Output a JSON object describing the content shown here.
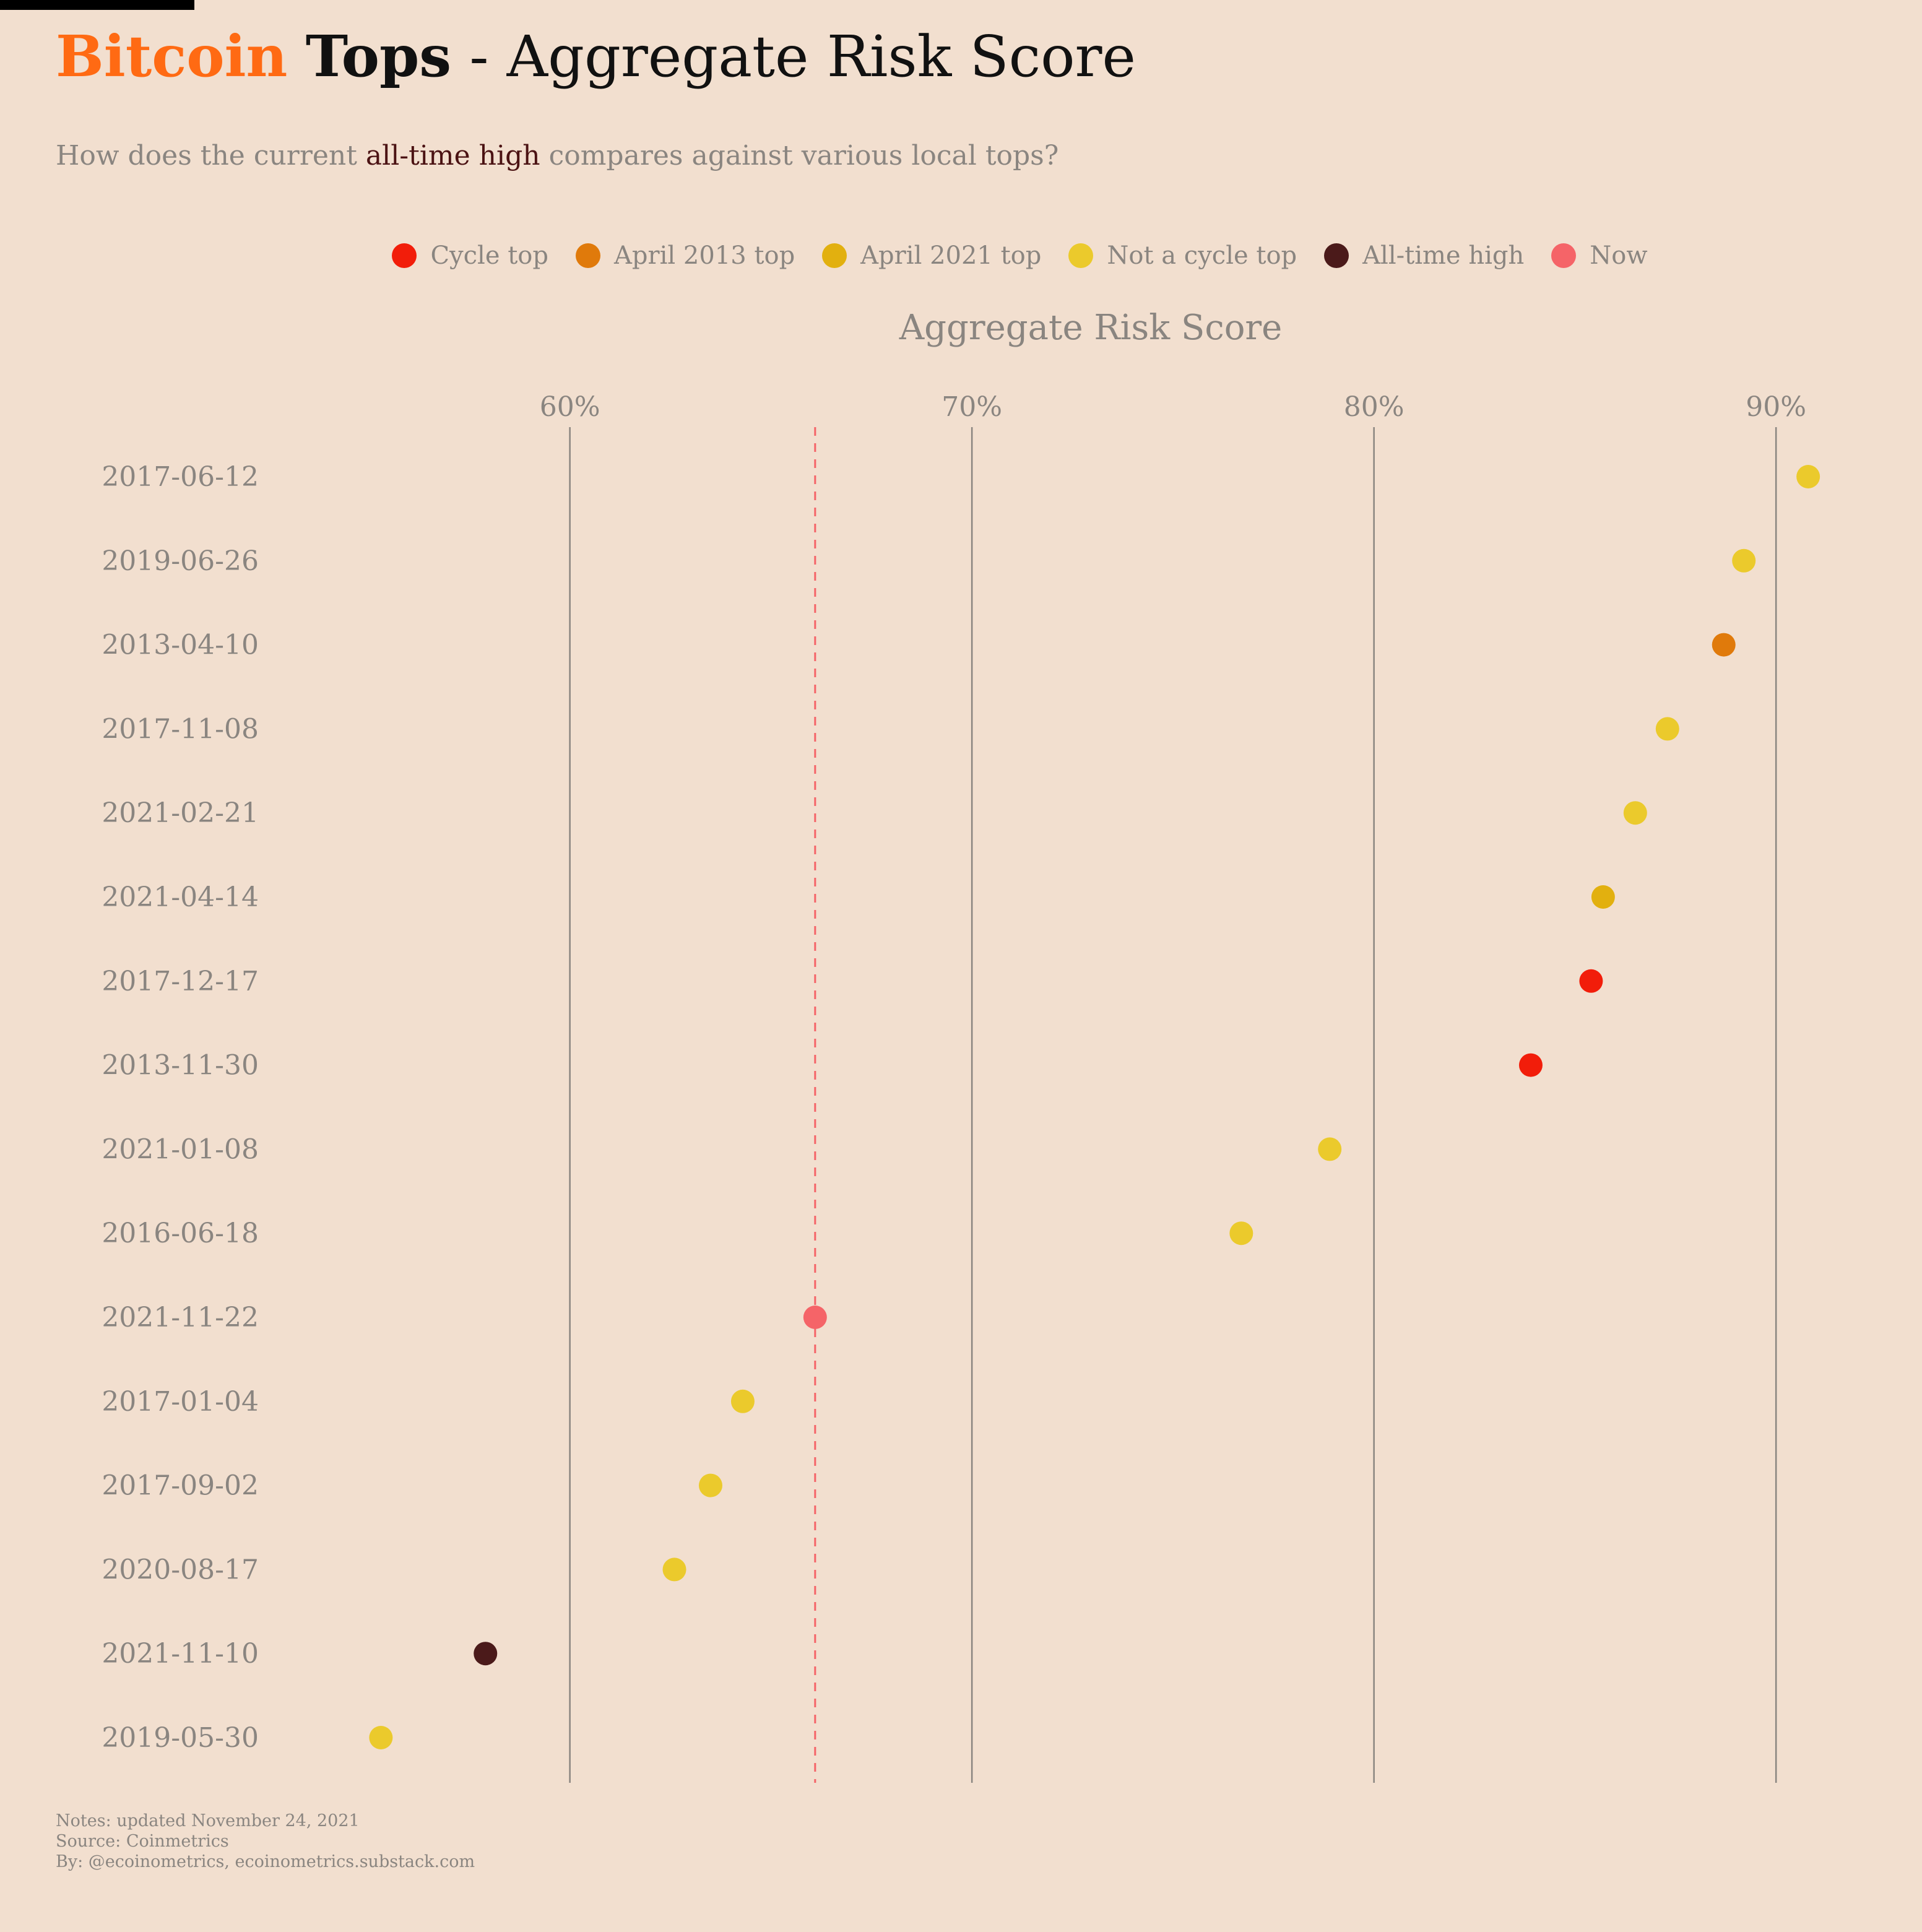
{
  "title": {
    "part1": "Bitcoin",
    "part2": "Tops",
    "part3": " - Aggregate Risk Score"
  },
  "subtitle": {
    "before": "How does the current ",
    "highlight": "all-time high",
    "after": " compares against various local tops?"
  },
  "legend": [
    {
      "label": "Cycle top",
      "color": "#f21d0a"
    },
    {
      "label": "April 2013 top",
      "color": "#e07a0b"
    },
    {
      "label": "April 2021 top",
      "color": "#e2b00f"
    },
    {
      "label": "Not a cycle top",
      "color": "#ebca2c"
    },
    {
      "label": "All-time high",
      "color": "#4b1a1a"
    },
    {
      "label": "Now",
      "color": "#f56468"
    }
  ],
  "notes": {
    "line1": "Notes: updated November 24, 2021",
    "line2": "Source: Coinmetrics",
    "line3": "By: @ecoinometrics, ecoinometrics.substack.com"
  },
  "chart_data": {
    "type": "scatter",
    "xlabel": "Aggregate Risk Score",
    "xlim": [
      52.6,
      93.4
    ],
    "x_ticks": [
      60,
      70,
      80,
      90
    ],
    "x_tick_labels": [
      "60%",
      "70%",
      "80%",
      "90%"
    ],
    "grid": true,
    "reference_line": {
      "x": 66.1,
      "color": "#f56468",
      "style": "dashed"
    },
    "points": [
      {
        "date": "2017-06-12",
        "value": 90.8,
        "category": "Not a cycle top"
      },
      {
        "date": "2019-06-26",
        "value": 89.2,
        "category": "Not a cycle top"
      },
      {
        "date": "2013-04-10",
        "value": 88.7,
        "category": "April 2013 top"
      },
      {
        "date": "2017-11-08",
        "value": 87.3,
        "category": "Not a cycle top"
      },
      {
        "date": "2021-02-21",
        "value": 86.5,
        "category": "Not a cycle top"
      },
      {
        "date": "2021-04-14",
        "value": 85.7,
        "category": "April 2021 top"
      },
      {
        "date": "2017-12-17",
        "value": 85.4,
        "category": "Cycle top"
      },
      {
        "date": "2013-11-30",
        "value": 83.9,
        "category": "Cycle top"
      },
      {
        "date": "2021-01-08",
        "value": 78.9,
        "category": "Not a cycle top"
      },
      {
        "date": "2016-06-18",
        "value": 76.7,
        "category": "Not a cycle top"
      },
      {
        "date": "2021-11-22",
        "value": 66.1,
        "category": "Now"
      },
      {
        "date": "2017-01-04",
        "value": 64.3,
        "category": "Not a cycle top"
      },
      {
        "date": "2017-09-02",
        "value": 63.5,
        "category": "Not a cycle top"
      },
      {
        "date": "2020-08-17",
        "value": 62.6,
        "category": "Not a cycle top"
      },
      {
        "date": "2021-11-10",
        "value": 57.9,
        "category": "All-time high"
      },
      {
        "date": "2019-05-30",
        "value": 55.3,
        "category": "Not a cycle top"
      }
    ]
  }
}
